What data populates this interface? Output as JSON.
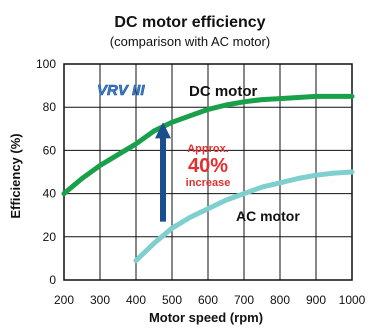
{
  "chart_data": {
    "type": "line",
    "title": "DC motor efficiency",
    "subtitle": "(comparison with AC motor)",
    "xlabel": "Motor speed (rpm)",
    "ylabel": "Efficiency (%)",
    "xlim": [
      200,
      1000
    ],
    "ylim": [
      0,
      100
    ],
    "x_ticks": [
      200,
      300,
      400,
      500,
      600,
      700,
      800,
      900,
      1000
    ],
    "y_ticks": [
      0,
      20,
      40,
      60,
      80,
      100
    ],
    "grid": true,
    "series": [
      {
        "name": "DC motor",
        "color": "#1aa04a",
        "x": [
          200,
          250,
          300,
          350,
          400,
          450,
          500,
          550,
          600,
          650,
          700,
          750,
          800,
          850,
          900,
          950,
          1000
        ],
        "y": [
          40,
          47,
          53,
          58,
          63,
          69,
          73,
          76,
          79,
          81,
          82.5,
          83.5,
          84,
          84.5,
          85,
          85,
          85
        ]
      },
      {
        "name": "AC motor",
        "color": "#7fcfcf",
        "x": [
          400,
          450,
          500,
          550,
          600,
          650,
          700,
          750,
          800,
          850,
          900,
          950,
          1000
        ],
        "y": [
          9,
          17,
          24,
          29,
          33,
          37,
          40,
          43,
          45,
          47,
          48.5,
          49.5,
          50
        ]
      }
    ],
    "annotations": {
      "arrow": {
        "x": 475,
        "y_from": 27,
        "y_to": 73
      },
      "approx": "Approx.",
      "percent": "40%",
      "increase": "increase",
      "dc_label_logo": "VRV III",
      "dc_label": "DC motor",
      "ac_label": "AC motor"
    }
  }
}
